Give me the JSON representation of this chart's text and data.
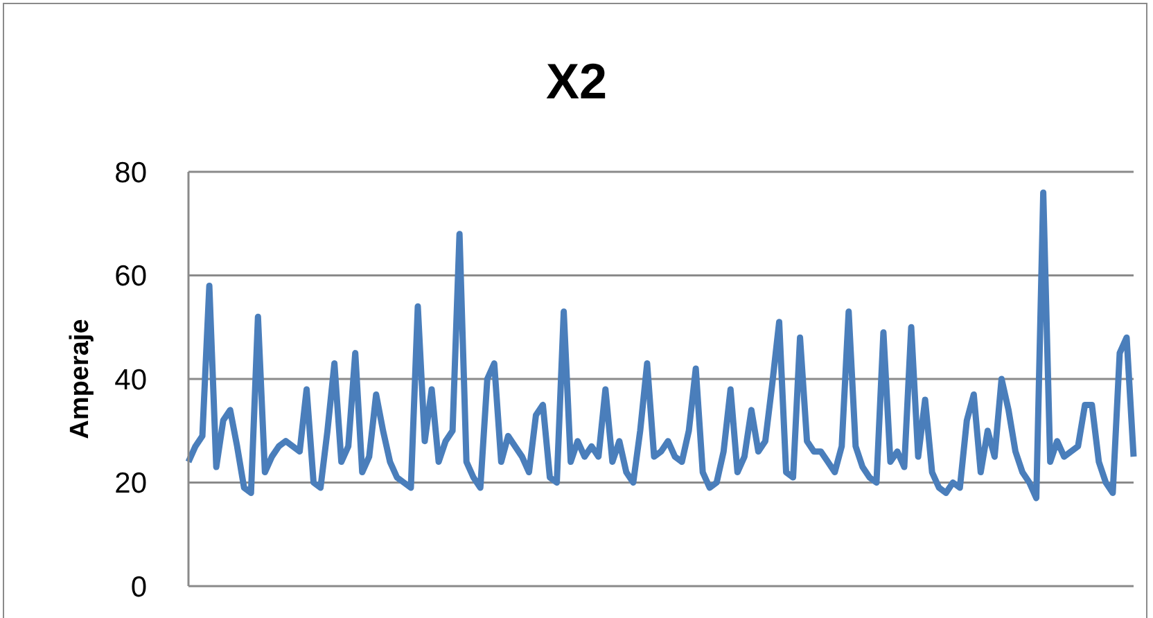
{
  "chart_data": {
    "type": "line",
    "title": "X2",
    "ylabel": "Amperaje",
    "categories": [
      null,
      null,
      null,
      null,
      null,
      null,
      null,
      null,
      null,
      null,
      null,
      null,
      null,
      null,
      null,
      null,
      null,
      null,
      null,
      null,
      null,
      null,
      null,
      null,
      null,
      null,
      null,
      null,
      null,
      null,
      null,
      null,
      null,
      null,
      null,
      null,
      null,
      null,
      null,
      null,
      null,
      null,
      null,
      null,
      null,
      null,
      null,
      null,
      null,
      null,
      null,
      null,
      null,
      null,
      null,
      null,
      null,
      null,
      null,
      null,
      null,
      null,
      null,
      null,
      null,
      null,
      null,
      null,
      null,
      null,
      null,
      null,
      null,
      null,
      null,
      null,
      null,
      null,
      null,
      null,
      null,
      null,
      null,
      null,
      null,
      null,
      null,
      null,
      null,
      null,
      null,
      null,
      null,
      null,
      null,
      null,
      null,
      null,
      null,
      null,
      null,
      null,
      null,
      null,
      null,
      null,
      null,
      null,
      null,
      null,
      null,
      null,
      null,
      null,
      null,
      null,
      null,
      null,
      null,
      null,
      null,
      null,
      null,
      null,
      null,
      null,
      null,
      null,
      null,
      null,
      null,
      null,
      null,
      null,
      null,
      null,
      null
    ],
    "series": [
      {
        "color": "#4a7ebb",
        "values": [
          24,
          27,
          29,
          58,
          23,
          32,
          34,
          27,
          19,
          18,
          52,
          22,
          25,
          27,
          28,
          27,
          26,
          38,
          20,
          19,
          30,
          43,
          24,
          27,
          45,
          22,
          25,
          37,
          30,
          24,
          21,
          20,
          19,
          54,
          28,
          38,
          24,
          28,
          30,
          68,
          24,
          21,
          19,
          40,
          43,
          24,
          29,
          27,
          25,
          22,
          33,
          35,
          21,
          20,
          53,
          24,
          28,
          25,
          27,
          25,
          38,
          24,
          28,
          22,
          20,
          30,
          43,
          25,
          26,
          28,
          25,
          24,
          30,
          42,
          22,
          19,
          20,
          26,
          38,
          22,
          25,
          34,
          26,
          28,
          39,
          51,
          22,
          21,
          48,
          28,
          26,
          26,
          24,
          22,
          27,
          53,
          27,
          23,
          21,
          20,
          49,
          24,
          26,
          23,
          50,
          25,
          36,
          22,
          19,
          18,
          20,
          19,
          32,
          37,
          22,
          30,
          25,
          40,
          34,
          26,
          22,
          20,
          17,
          76,
          24,
          28,
          25,
          26,
          27,
          35,
          35,
          24,
          20,
          18,
          45,
          48,
          25
        ]
      }
    ],
    "ylim": [
      0,
      80
    ],
    "yticks": [
      0,
      20,
      40,
      60,
      80
    ],
    "grid": "y",
    "marker": "none",
    "line_style": "solid",
    "tick_labels": "y"
  }
}
